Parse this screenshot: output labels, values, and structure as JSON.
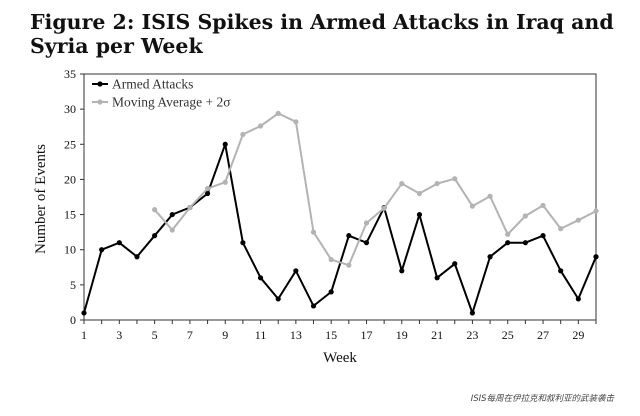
{
  "title": "Figure 2: ISIS Spikes in Armed Attacks in Iraq and Syria per Week",
  "caption": "ISIS每周在伊拉克和叙利亚的武装袭击",
  "chart_data": {
    "type": "line",
    "xlabel": "Week",
    "ylabel": "Number of Events",
    "xlim": [
      1,
      30
    ],
    "ylim": [
      0,
      35
    ],
    "xticks": [
      1,
      3,
      5,
      7,
      9,
      11,
      13,
      15,
      17,
      19,
      21,
      23,
      25,
      27,
      29
    ],
    "yticks": [
      0,
      5,
      10,
      15,
      20,
      25,
      30,
      35
    ],
    "grid": false,
    "legend_position": "top-left",
    "series": [
      {
        "name": "Armed Attacks",
        "color": "#000000",
        "x": [
          1,
          2,
          3,
          4,
          5,
          6,
          7,
          8,
          9,
          10,
          11,
          12,
          13,
          14,
          15,
          16,
          17,
          18,
          19,
          20,
          21,
          22,
          23,
          24,
          25,
          26,
          27,
          28,
          29,
          30
        ],
        "y": [
          1,
          10,
          11,
          9,
          12,
          15,
          16,
          18,
          25,
          11,
          6,
          3,
          7,
          2,
          4,
          12,
          11,
          16,
          7,
          15,
          6,
          8,
          1,
          9,
          11,
          11,
          12,
          7,
          3,
          9
        ]
      },
      {
        "name": "Moving Average + 2σ",
        "color": "#b3b3b3",
        "x": [
          5,
          6,
          7,
          8,
          9,
          10,
          11,
          12,
          13,
          14,
          15,
          16,
          17,
          18,
          19,
          20,
          21,
          22,
          23,
          24,
          25,
          26,
          27,
          28,
          29,
          30
        ],
        "y": [
          15.7,
          12.8,
          16,
          18.7,
          19.6,
          26.4,
          27.6,
          29.4,
          28.2,
          12.5,
          8.6,
          7.8,
          13.8,
          15.9,
          19.4,
          18,
          19.4,
          20.1,
          16.2,
          17.6,
          12.2,
          14.8,
          16.3,
          13,
          14.2,
          15.5
        ]
      }
    ]
  }
}
